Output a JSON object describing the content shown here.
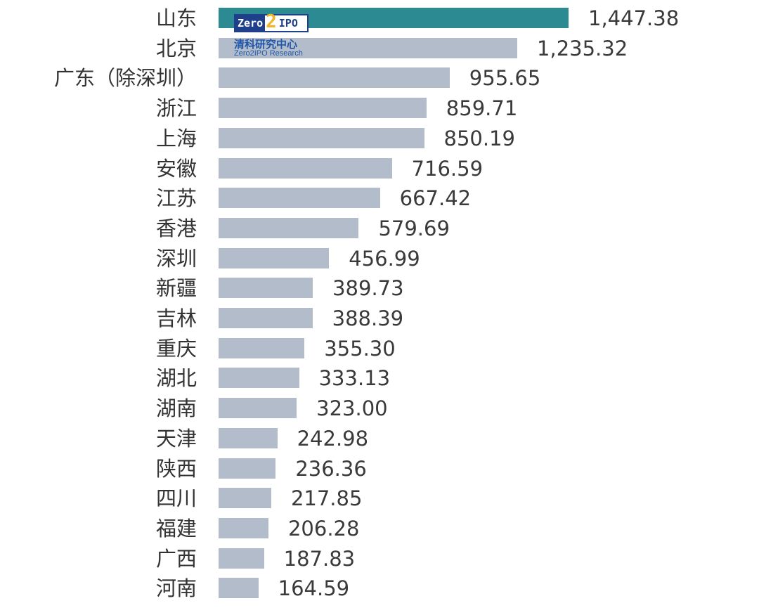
{
  "chart_data": {
    "type": "bar",
    "orientation": "horizontal",
    "title": "",
    "xlabel": "",
    "ylabel": "",
    "categories": [
      "山东",
      "北京",
      "广东（除深圳）",
      "浙江",
      "上海",
      "安徽",
      "江苏",
      "香港",
      "深圳",
      "新疆",
      "吉林",
      "重庆",
      "湖北",
      "湖南",
      "天津",
      "陕西",
      "四川",
      "福建",
      "广西",
      "河南"
    ],
    "values": [
      1447.38,
      1235.32,
      955.65,
      859.71,
      850.19,
      716.59,
      667.42,
      579.69,
      456.99,
      389.73,
      388.39,
      355.3,
      333.13,
      323.0,
      242.98,
      236.36,
      217.85,
      206.28,
      187.83,
      164.59
    ],
    "value_labels": [
      "1,447.38",
      "1,235.32",
      "955.65",
      "859.71",
      "850.19",
      "716.59",
      "667.42",
      "579.69",
      "456.99",
      "389.73",
      "388.39",
      "355.30",
      "333.13",
      "323.00",
      "242.98",
      "236.36",
      "217.85",
      "206.28",
      "187.83",
      "164.59"
    ],
    "highlight_index": 0,
    "colors": {
      "highlight": "#2c8b92",
      "default": "#b3bccb"
    },
    "grid": false,
    "legend": null
  },
  "watermark": {
    "brand_left": "Zero",
    "brand_mid": "2",
    "brand_right": "IPO",
    "cn": "清科研究中心",
    "en": "Zero2IPO Research"
  }
}
